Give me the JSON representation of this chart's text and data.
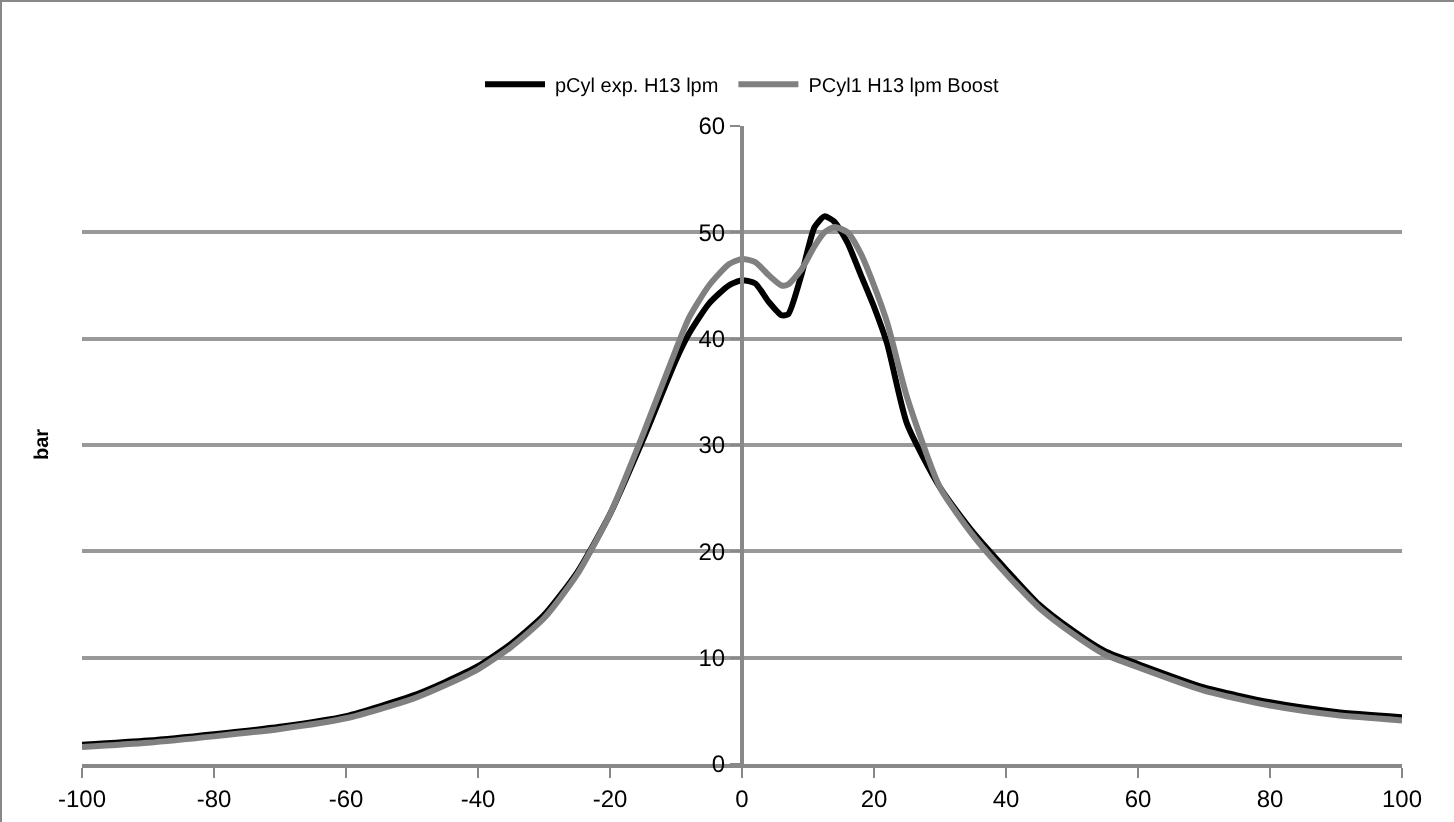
{
  "chart_data": {
    "type": "line",
    "ylabel": "bar",
    "x": [
      -100,
      -90,
      -80,
      -70,
      -60,
      -50,
      -45,
      -40,
      -35,
      -30,
      -25,
      -20,
      -15,
      -10,
      -8,
      -5,
      -2,
      0,
      2,
      4,
      6,
      7,
      9,
      11,
      12.5,
      14,
      16,
      18,
      20,
      22,
      25,
      30,
      35,
      40,
      45,
      50,
      55,
      60,
      70,
      80,
      90,
      100
    ],
    "series": [
      {
        "name": "pCyl exp. H13 lpm",
        "color": "#000000",
        "values": [
          1.8,
          2.2,
          2.8,
          3.5,
          4.5,
          6.4,
          7.7,
          9.2,
          11.3,
          14,
          18,
          23.5,
          30.5,
          38,
          40.5,
          43.3,
          45,
          45.5,
          45.2,
          43.5,
          42.2,
          42.3,
          46,
          50.5,
          51.5,
          51,
          49,
          46,
          43,
          39.5,
          32,
          26,
          21.8,
          18.3,
          15,
          12.6,
          10.6,
          9.4,
          7.2,
          5.8,
          4.9,
          4.4
        ]
      },
      {
        "name": "PCyl1 H13 lpm Boost",
        "color": "#808080",
        "values": [
          1.6,
          2.0,
          2.6,
          3.3,
          4.3,
          6.1,
          7.4,
          8.9,
          11,
          13.7,
          17.8,
          23.5,
          31,
          39,
          42,
          45,
          47,
          47.5,
          47.2,
          46,
          45,
          45.1,
          46.5,
          48.7,
          50,
          50.5,
          50,
          48,
          45,
          41.5,
          34.5,
          26,
          21.5,
          17.9,
          14.7,
          12.3,
          10.3,
          9.1,
          6.9,
          5.5,
          4.6,
          4.1
        ]
      }
    ],
    "xlim": [
      -100,
      100
    ],
    "xticks": [
      -100,
      -80,
      -60,
      -40,
      -20,
      0,
      20,
      40,
      60,
      80,
      100
    ],
    "ylim": [
      0,
      60
    ],
    "yticks": [
      0,
      10,
      20,
      30,
      40,
      50,
      60
    ],
    "grid": "y",
    "legend": "top",
    "marker": "none",
    "line_style": "solid"
  }
}
